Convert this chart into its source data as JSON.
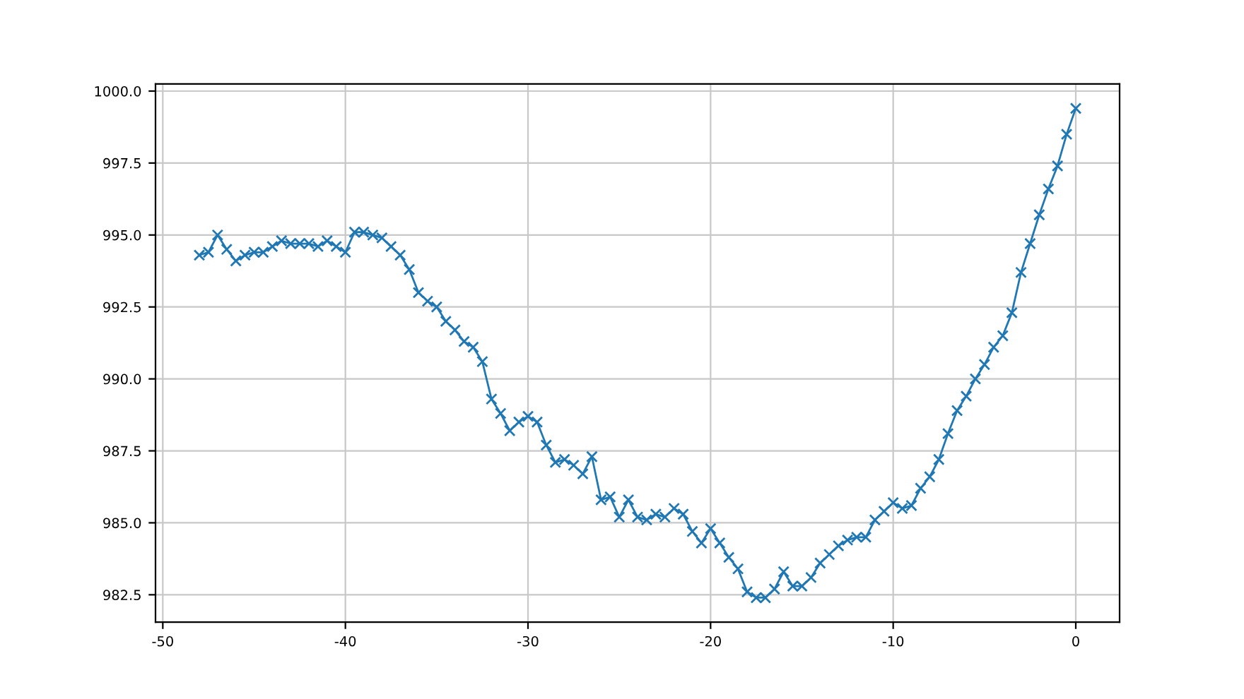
{
  "chart_data": {
    "type": "line",
    "marker": "cross",
    "grid": true,
    "x": [
      -48,
      -47.5,
      -47,
      -46.5,
      -46,
      -45.5,
      -45,
      -44.5,
      -44,
      -43.5,
      -43,
      -42.5,
      -42,
      -41.5,
      -41,
      -40.5,
      -40,
      -39.5,
      -39,
      -38.5,
      -38,
      -37.5,
      -37,
      -36.5,
      -36,
      -35.5,
      -35,
      -34.5,
      -34,
      -33.5,
      -33,
      -32.5,
      -32,
      -31.5,
      -31,
      -30.5,
      -30,
      -29.5,
      -29,
      -28.5,
      -28,
      -27.5,
      -27,
      -26.5,
      -26,
      -25.5,
      -25,
      -24.5,
      -24,
      -23.5,
      -23,
      -22.5,
      -22,
      -21.5,
      -21,
      -20.5,
      -20,
      -19.5,
      -19,
      -18.5,
      -18,
      -17.5,
      -17,
      -16.5,
      -16,
      -15.5,
      -15,
      -14.5,
      -14,
      -13.5,
      -13,
      -12.5,
      -12,
      -11.5,
      -11,
      -10.5,
      -10,
      -9.5,
      -9,
      -8.5,
      -8,
      -7.5,
      -7,
      -6.5,
      -6,
      -5.5,
      -5,
      -4.5,
      -4,
      -3.5,
      -3,
      -2.5,
      -2,
      -1.5,
      -1,
      -0.5,
      0
    ],
    "series": [
      {
        "color": "#1f77b4",
        "values": [
          994.3,
          994.4,
          995.0,
          994.5,
          994.1,
          994.3,
          994.4,
          994.4,
          994.6,
          994.8,
          994.7,
          994.7,
          994.7,
          994.6,
          994.8,
          994.6,
          994.4,
          995.1,
          995.1,
          995.0,
          994.9,
          994.6,
          994.3,
          993.8,
          993.0,
          992.7,
          992.5,
          992.0,
          991.7,
          991.3,
          991.1,
          990.6,
          989.3,
          988.8,
          988.2,
          988.5,
          988.7,
          988.5,
          987.7,
          987.1,
          987.2,
          987.0,
          986.7,
          987.3,
          985.8,
          985.9,
          985.2,
          985.8,
          985.2,
          985.1,
          985.3,
          985.2,
          985.5,
          985.3,
          984.7,
          984.3,
          984.8,
          984.3,
          983.8,
          983.4,
          982.6,
          982.4,
          982.4,
          982.7,
          983.3,
          982.8,
          982.8,
          983.1,
          983.6,
          983.9,
          984.2,
          984.4,
          984.5,
          984.5,
          985.1,
          985.4,
          985.7,
          985.5,
          985.6,
          986.2,
          986.6,
          987.2,
          988.1,
          988.9,
          989.4,
          990.0,
          990.5,
          991.1,
          991.5,
          992.3,
          993.7,
          994.7,
          995.7,
          996.6,
          997.4,
          998.5,
          999.4
        ]
      }
    ],
    "xlim": [
      -50.4,
      2.4
    ],
    "xticks": [
      -50,
      -40,
      -30,
      -20,
      -10,
      0
    ],
    "ylim": [
      981.55,
      1000.25
    ],
    "yticks": [
      {
        "value": 982.5,
        "label": "982.5"
      },
      {
        "value": 985,
        "label": "985.0"
      },
      {
        "value": 987.5,
        "label": "987.5"
      },
      {
        "value": 990,
        "label": "990.0"
      },
      {
        "value": 992.5,
        "label": "992.5"
      },
      {
        "value": 995,
        "label": "995.0"
      },
      {
        "value": 997.5,
        "label": "997.5"
      },
      {
        "value": 1000,
        "label": "1000.0"
      }
    ]
  }
}
